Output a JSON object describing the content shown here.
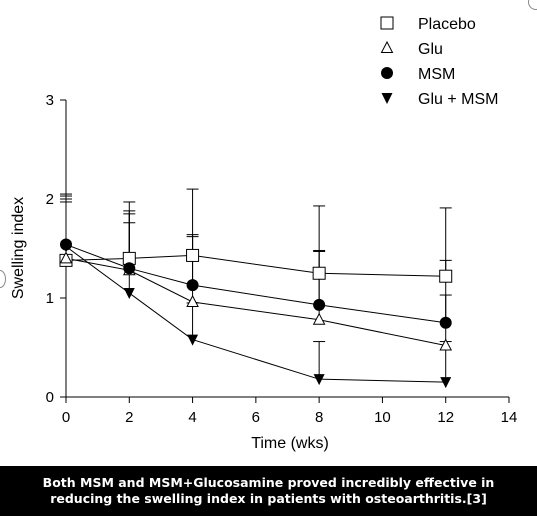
{
  "chart_data": {
    "type": "line",
    "title": "",
    "xlabel": "Time (wks)",
    "ylabel": "Swelling index",
    "xlim": [
      0,
      14
    ],
    "ylim": [
      0,
      3
    ],
    "xticks": [
      0,
      2,
      4,
      6,
      8,
      10,
      12,
      14
    ],
    "yticks": [
      0,
      1,
      2,
      3
    ],
    "grid": false,
    "legend_position": "top-right",
    "x": [
      0,
      2,
      4,
      8,
      12
    ],
    "series": [
      {
        "name": "Placebo",
        "marker": "open-square",
        "values": [
          1.38,
          1.4,
          1.43,
          1.25,
          1.22
        ],
        "err_upper": [
          2.03,
          1.97,
          2.1,
          1.93,
          1.91
        ]
      },
      {
        "name": "Glu",
        "marker": "open-triangle-up",
        "values": [
          1.4,
          1.28,
          0.96,
          0.78,
          0.52
        ],
        "err_upper": [
          2.05,
          1.85,
          1.62,
          1.47,
          1.38
        ]
      },
      {
        "name": "MSM",
        "marker": "filled-circle",
        "values": [
          1.54,
          1.3,
          1.13,
          0.93,
          0.75
        ],
        "err_upper": [
          2.0,
          1.88,
          1.64,
          1.48,
          1.03
        ]
      },
      {
        "name": "Glu + MSM",
        "marker": "filled-triangle-down",
        "values": [
          1.52,
          1.05,
          0.58,
          0.18,
          0.15
        ],
        "err_upper": [
          1.97,
          1.76,
          0.95,
          0.56,
          0.56
        ]
      }
    ]
  },
  "caption": "Both MSM and MSM+Glucosamine proved incredibly effective in reducing the swelling index in patients with osteoarthritis.[3]"
}
